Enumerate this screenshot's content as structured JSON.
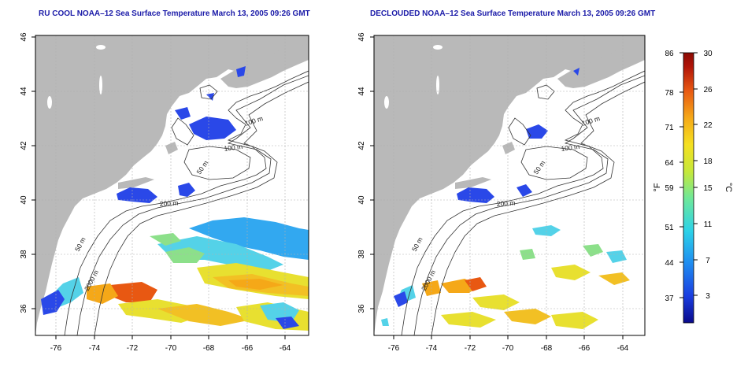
{
  "panels": [
    {
      "id": "left",
      "title": "RU COOL NOAA–12 Sea Surface Temperature March 13, 2005 09:26 GMT",
      "xticks": [
        "-76",
        "-74",
        "-72",
        "-70",
        "-68",
        "-66",
        "-64"
      ],
      "yticks": [
        "46",
        "44",
        "42",
        "40",
        "38",
        "36"
      ],
      "contour_labels": [
        "100 m",
        "100 m",
        "50 m",
        "200 m",
        "50 m",
        "2000 m"
      ]
    },
    {
      "id": "right",
      "title": "DECLOUDED NOAA–12 Sea Surface Temperature March 13, 2005 09:26 GMT",
      "xticks": [
        "-76",
        "-74",
        "-72",
        "-70",
        "-68",
        "-66",
        "-64"
      ],
      "yticks": [
        "46",
        "44",
        "42",
        "40",
        "38",
        "36"
      ],
      "contour_labels": [
        "100 m",
        "100 m",
        "50 m",
        "200 m",
        "50 m",
        "2000 m"
      ]
    }
  ],
  "colorbar": {
    "f_ticks": [
      "86",
      "78",
      "71",
      "64",
      "59",
      "51",
      "44",
      "37"
    ],
    "c_ticks": [
      "30",
      "26",
      "22",
      "18",
      "15",
      "11",
      "7",
      "3"
    ],
    "f_label": "°F",
    "c_label": "°C",
    "colors": [
      "#0a0a8c",
      "#1a3ee0",
      "#1f8cf0",
      "#2cd2e8",
      "#6ee89a",
      "#c6e83a",
      "#f5e020",
      "#f5a818",
      "#e85812",
      "#b01408",
      "#8a0a04"
    ]
  },
  "colors": {
    "land": "#b9b9b9",
    "water": "#ffffff",
    "contour": "#333333",
    "grid": "#b0b0b0",
    "title": "#1a1aa8"
  }
}
